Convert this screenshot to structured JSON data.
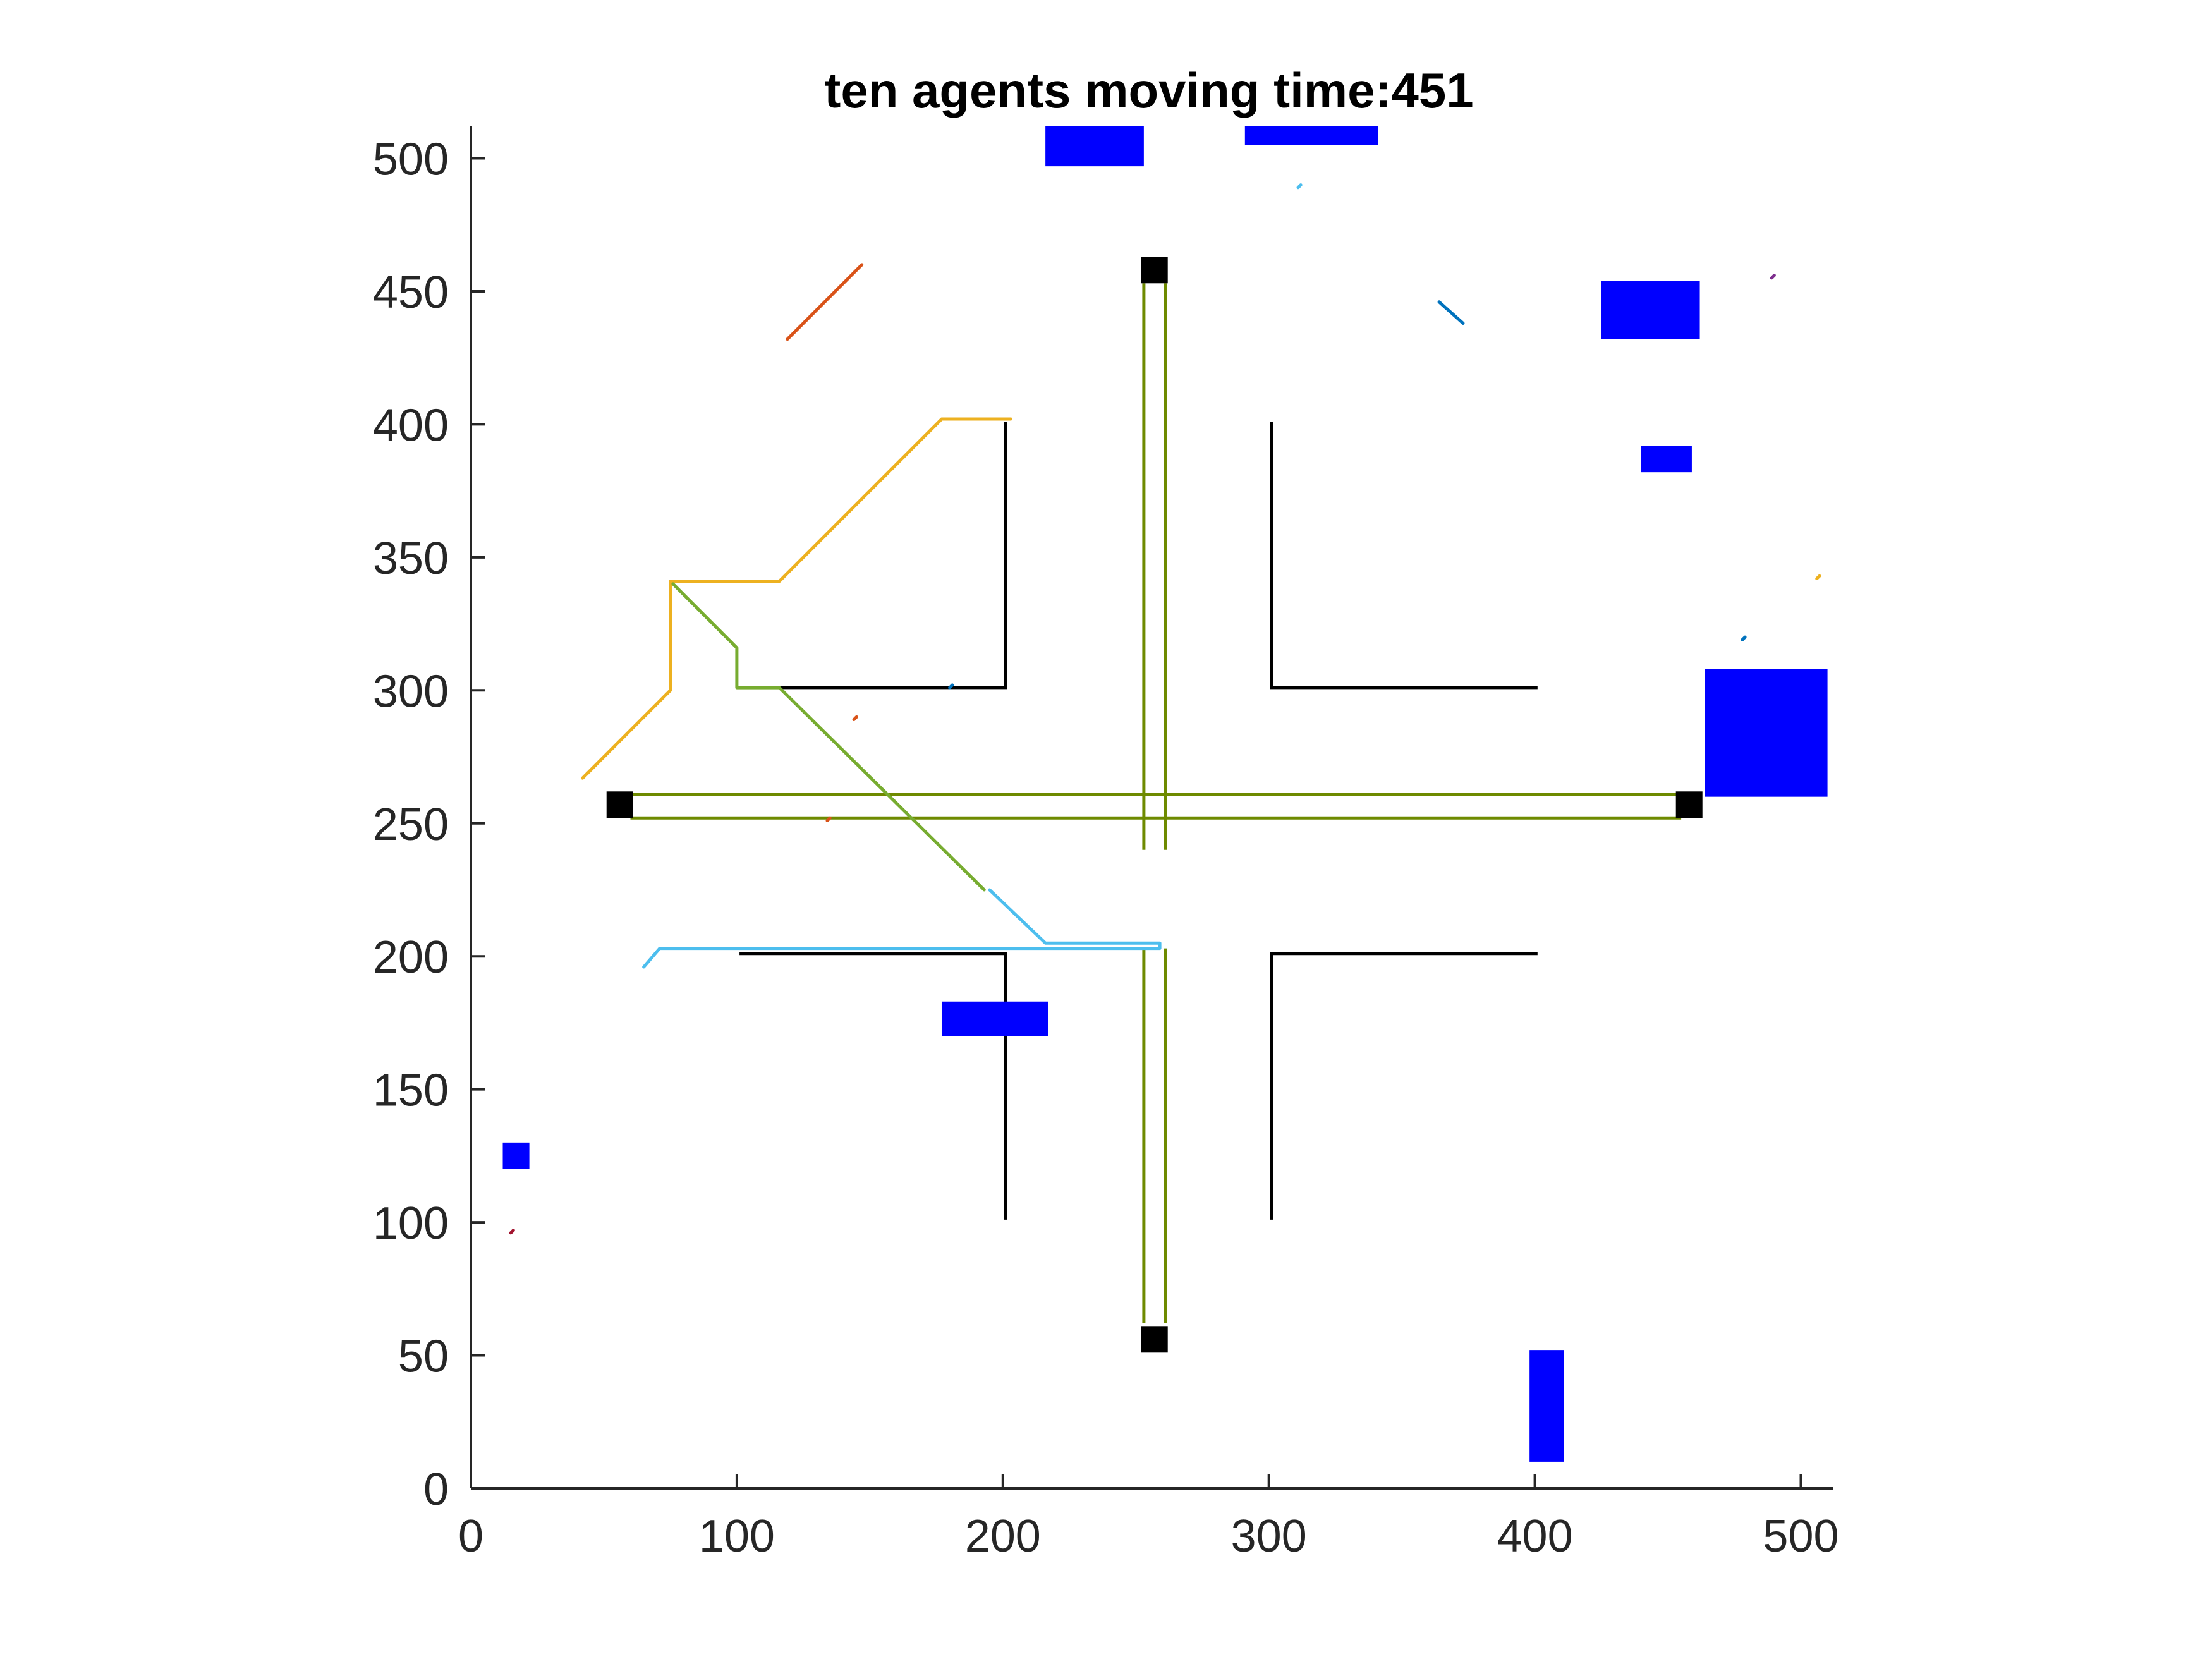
{
  "chart_data": {
    "type": "line",
    "title": "ten agents moving time:451",
    "xlabel": "",
    "ylabel": "",
    "xlim": [
      0,
      512
    ],
    "ylim": [
      0,
      512
    ],
    "xticks": [
      0,
      100,
      200,
      300,
      400,
      500
    ],
    "yticks": [
      0,
      50,
      100,
      150,
      200,
      250,
      300,
      350,
      400,
      450,
      500
    ],
    "grid": false,
    "legend": "none",
    "colors": {
      "walls": "#000000",
      "obstacles": "#0000ff",
      "roads": "#6e8a00",
      "depots": "#000000",
      "axis": "#262626"
    },
    "walls": [
      {
        "name": "wall-upper-left",
        "points": [
          [
            101,
            301
          ],
          [
            201,
            301
          ],
          [
            201,
            401
          ]
        ]
      },
      {
        "name": "wall-upper-right",
        "points": [
          [
            301,
            401
          ],
          [
            301,
            301
          ],
          [
            401,
            301
          ]
        ]
      },
      {
        "name": "wall-lower-left",
        "points": [
          [
            101,
            201
          ],
          [
            201,
            201
          ],
          [
            201,
            101
          ]
        ]
      },
      {
        "name": "wall-lower-right",
        "points": [
          [
            401,
            201
          ],
          [
            301,
            201
          ],
          [
            301,
            101
          ]
        ]
      }
    ],
    "roads": [
      {
        "name": "road-horizontal-top",
        "points": [
          [
            60,
            261
          ],
          [
            455,
            261
          ]
        ]
      },
      {
        "name": "road-horizontal-bottom",
        "points": [
          [
            60,
            252
          ],
          [
            455,
            252
          ]
        ]
      },
      {
        "name": "road-vertical-left-upper",
        "points": [
          [
            253,
            453
          ],
          [
            253,
            240
          ]
        ]
      },
      {
        "name": "road-vertical-right-upper",
        "points": [
          [
            261,
            453
          ],
          [
            261,
            240
          ]
        ]
      },
      {
        "name": "road-vertical-left-lower",
        "points": [
          [
            253,
            203
          ],
          [
            253,
            62
          ]
        ]
      },
      {
        "name": "road-vertical-right-lower",
        "points": [
          [
            261,
            203
          ],
          [
            261,
            62
          ]
        ]
      }
    ],
    "depots": [
      {
        "name": "depot-north",
        "x": 257,
        "y": 458
      },
      {
        "name": "depot-west",
        "x": 56,
        "y": 257
      },
      {
        "name": "depot-east",
        "x": 458,
        "y": 257
      },
      {
        "name": "depot-south",
        "x": 257,
        "y": 56
      }
    ],
    "obstacles": [
      {
        "name": "obstacle-top-left",
        "x0": 216,
        "x1": 253,
        "y0": 497,
        "y1": 512
      },
      {
        "name": "obstacle-top-right",
        "x0": 291,
        "x1": 341,
        "y0": 505,
        "y1": 512
      },
      {
        "name": "obstacle-upper-right",
        "x0": 425,
        "x1": 462,
        "y0": 432,
        "y1": 454
      },
      {
        "name": "obstacle-small-right",
        "x0": 440,
        "x1": 459,
        "y0": 382,
        "y1": 392
      },
      {
        "name": "obstacle-right-large",
        "x0": 464,
        "x1": 510,
        "y0": 260,
        "y1": 308
      },
      {
        "name": "obstacle-center",
        "x0": 177,
        "x1": 217,
        "y0": 170,
        "y1": 183
      },
      {
        "name": "obstacle-left-small",
        "x0": 12,
        "x1": 22,
        "y0": 120,
        "y1": 130
      },
      {
        "name": "obstacle-bottom",
        "x0": 398,
        "x1": 411,
        "y0": 10,
        "y1": 52
      }
    ],
    "series": [
      {
        "color": "#edb120",
        "points": [
          [
            42,
            267
          ],
          [
            75,
            300
          ],
          [
            75,
            341
          ],
          [
            116,
            341
          ],
          [
            177,
            402
          ],
          [
            203,
            402
          ]
        ]
      },
      {
        "color": "#77ac30",
        "points": [
          [
            76,
            340
          ],
          [
            100,
            316
          ],
          [
            100,
            301
          ],
          [
            116,
            301
          ],
          [
            193,
            225
          ]
        ]
      },
      {
        "color": "#4dbeee",
        "points": [
          [
            65,
            196
          ],
          [
            71,
            203
          ],
          [
            259,
            203
          ],
          [
            259,
            205
          ],
          [
            216,
            205
          ],
          [
            195,
            225
          ]
        ]
      },
      {
        "color": "#d95319",
        "points": [
          [
            119,
            432
          ],
          [
            147,
            460
          ]
        ]
      },
      {
        "color": "#0072bd",
        "points": [
          [
            364,
            446
          ],
          [
            373,
            438
          ]
        ]
      },
      {
        "color": "#4dbeee",
        "points": [
          [
            311,
            489
          ],
          [
            312,
            490
          ]
        ]
      },
      {
        "color": "#7e2f8e",
        "points": [
          [
            489,
            455
          ],
          [
            490,
            456
          ]
        ]
      },
      {
        "color": "#edb120",
        "points": [
          [
            506,
            342
          ],
          [
            507,
            343
          ]
        ]
      },
      {
        "color": "#0072bd",
        "points": [
          [
            478,
            319
          ],
          [
            479,
            320
          ]
        ]
      },
      {
        "color": "#d95319",
        "points": [
          [
            144,
            289
          ],
          [
            145,
            290
          ]
        ]
      },
      {
        "color": "#d95319",
        "points": [
          [
            134,
            251
          ],
          [
            135,
            252
          ]
        ]
      },
      {
        "color": "#a2142f",
        "points": [
          [
            15,
            96
          ],
          [
            16,
            97
          ]
        ]
      },
      {
        "color": "#0072bd",
        "points": [
          [
            180,
            301
          ],
          [
            181,
            302
          ]
        ]
      }
    ]
  }
}
